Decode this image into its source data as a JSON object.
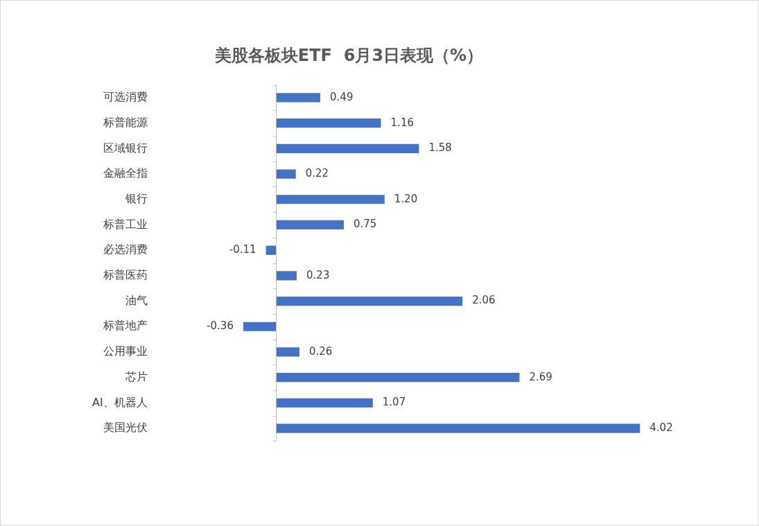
{
  "chart_data": {
    "type": "bar",
    "orientation": "horizontal",
    "title": "美股各板块ETF  6月3日表现（%）",
    "categories": [
      "可选消费",
      "标普能源",
      "区域银行",
      "金融全指",
      "银行",
      "标普工业",
      "必选消费",
      "标普医药",
      "油气",
      "标普地产",
      "公用事业",
      "芯片",
      "AI、机器人",
      "美国光伏"
    ],
    "values": [
      0.49,
      1.16,
      1.58,
      0.22,
      1.2,
      0.75,
      -0.11,
      0.23,
      2.06,
      -0.36,
      0.26,
      2.69,
      1.07,
      4.02
    ],
    "value_labels": [
      "0.49",
      "1.16",
      "1.58",
      "0.22",
      "1.20",
      "0.75",
      "-0.11",
      "0.23",
      "2.06",
      "-0.36",
      "0.26",
      "2.69",
      "1.07",
      "4.02"
    ],
    "color": "#4472c4",
    "legend": false
  }
}
